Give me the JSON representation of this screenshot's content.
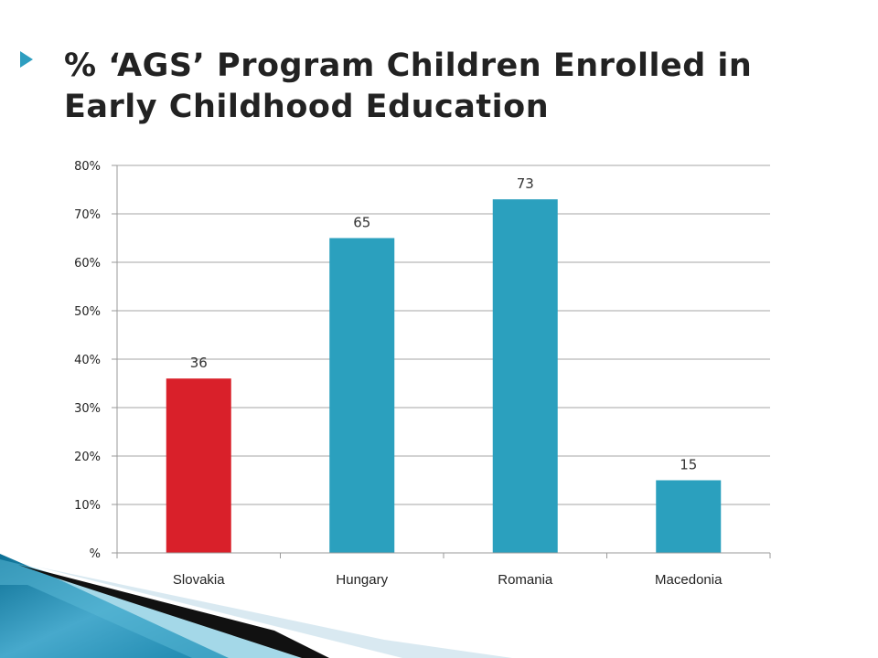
{
  "slide": {
    "title": "% ‘AGS’ Program Children Enrolled in Early Childhood Education"
  },
  "chart_data": {
    "type": "bar",
    "title": "% ‘AGS’ Program Children Enrolled in Early Childhood Education",
    "categories": [
      "Slovakia",
      "Hungary",
      "Romania",
      "Macedonia"
    ],
    "values": [
      36,
      65,
      73,
      15
    ],
    "data_labels": [
      "36",
      "65",
      "73",
      "15"
    ],
    "bar_colors": [
      "#d9202a",
      "#2ba0be",
      "#2ba0be",
      "#2ba0be"
    ],
    "y_ticks": [
      0,
      10,
      20,
      30,
      40,
      50,
      60,
      70,
      80
    ],
    "y_tick_labels": [
      "%",
      "10%",
      "20%",
      "30%",
      "40%",
      "50%",
      "60%",
      "70%",
      "80%"
    ],
    "ylim": [
      0,
      80
    ],
    "xlabel": "",
    "ylabel": "",
    "grid": true,
    "legend": "none"
  },
  "colors": {
    "accent": "#2e9ec0",
    "grid": "#a6a6a6",
    "axis": "#9a9a9a"
  },
  "decoration": {
    "title_bullet_icon": "triangle-bullet-icon",
    "corner_icon": "swoosh-decoration-icon"
  }
}
